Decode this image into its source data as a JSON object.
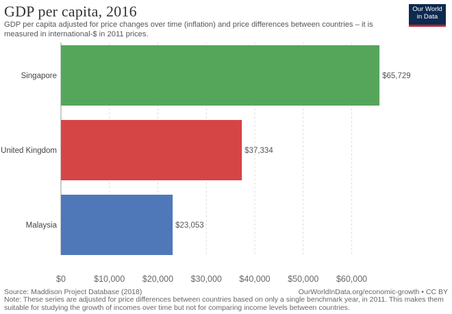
{
  "header": {
    "title": "GDP per capita, 2016",
    "subtitle": "GDP per capita adjusted for price changes over time (inflation) and price differences between countries – it is measured in international-$ in 2011 prices."
  },
  "logo": {
    "line1": "Our World",
    "line2": "in Data"
  },
  "footer": {
    "source": "Source: Maddison Project Database (2018)",
    "url": "OurWorldInData.org/economic-growth • CC BY",
    "note": "Note: These series are adjusted for price differences between countries based on only a single benchmark year, in 2011. This makes them suitable for studying the growth of incomes over time but not for comparing income levels between countries."
  },
  "chart_data": {
    "type": "bar",
    "orientation": "horizontal",
    "title": "GDP per capita, 2016",
    "categories": [
      "Singapore",
      "United Kingdom",
      "Malaysia"
    ],
    "values": [
      65729,
      37334,
      23053
    ],
    "value_labels": [
      "$65,729",
      "$37,334",
      "$23,053"
    ],
    "colors": [
      "#55a65a",
      "#d64546",
      "#4f78b9"
    ],
    "xlim": [
      0,
      66000
    ],
    "xticks": [
      0,
      10000,
      20000,
      30000,
      40000,
      50000,
      60000
    ],
    "xtick_labels": [
      "$0",
      "$10,000",
      "$20,000",
      "$30,000",
      "$40,000",
      "$50,000",
      "$60,000"
    ],
    "grid": true
  }
}
